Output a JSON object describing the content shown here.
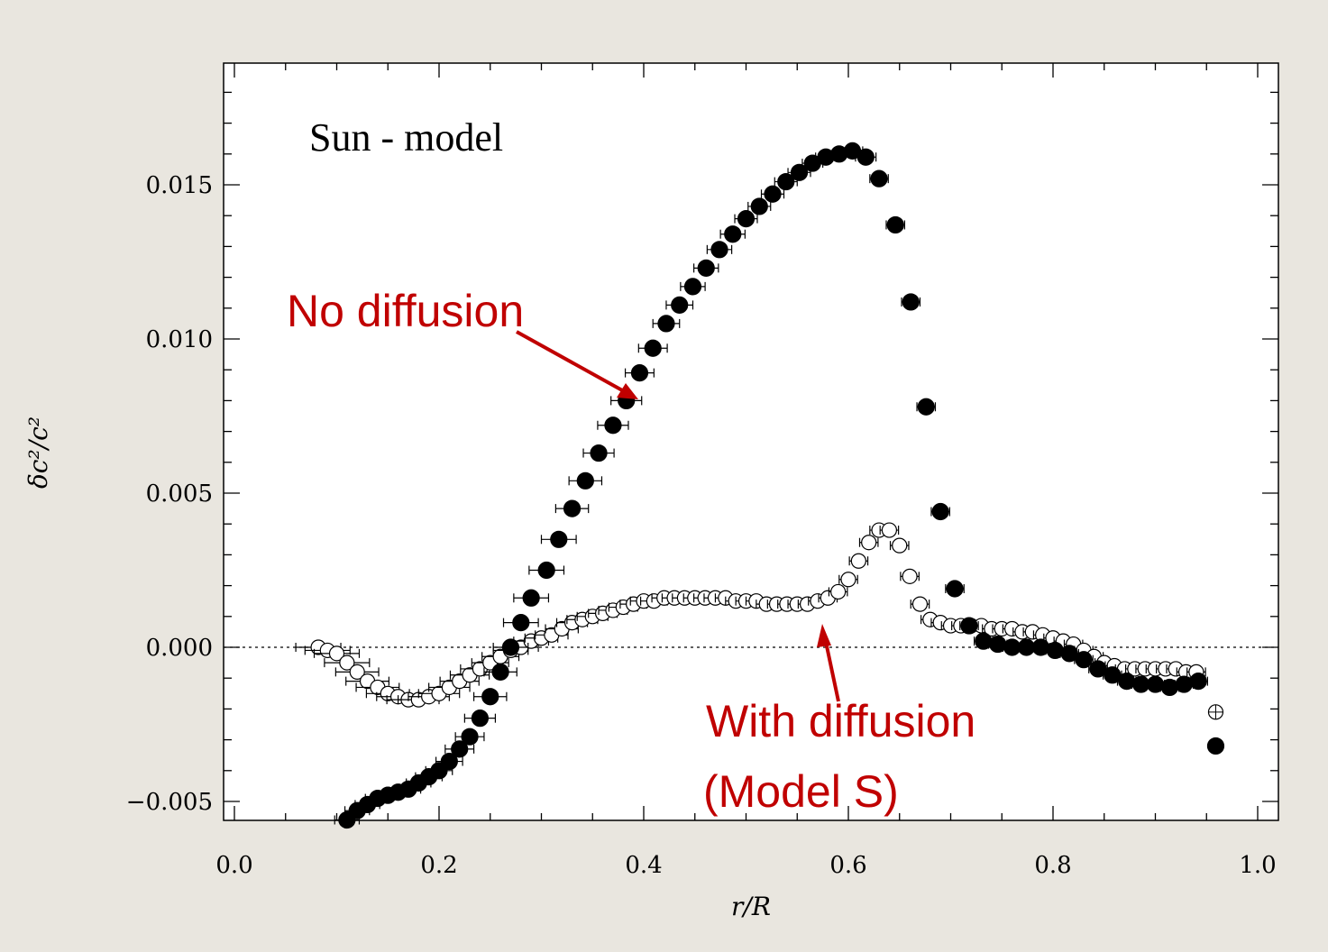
{
  "colors": {
    "annotation": "#c00000",
    "marker": "#000000",
    "page_background": "#e9e6df",
    "plot_background": "#ffffff"
  },
  "chart_data": {
    "type": "scatter",
    "title": "Sun - model",
    "xlabel": "r/R",
    "ylabel": "δc²/c²",
    "xlim": [
      0.0,
      1.0
    ],
    "ylim": [
      -0.0055,
      0.0185
    ],
    "x_ticks": [
      "0.0",
      "0.2",
      "0.4",
      "0.6",
      "0.8",
      "1.0"
    ],
    "y_ticks": [
      "−0.005",
      "0.000",
      "0.005",
      "0.010",
      "0.015"
    ],
    "y_tick_values": [
      -0.005,
      0.0,
      0.005,
      0.01,
      0.015
    ],
    "x_tick_values": [
      0.0,
      0.2,
      0.4,
      0.6,
      0.8,
      1.0
    ],
    "reference_line": {
      "y": 0.0,
      "style": "dotted"
    },
    "grid": false,
    "error_bars": "horizontal",
    "annotations": [
      {
        "text": "No diffusion",
        "target_x": 0.385,
        "target_y": 0.008
      },
      {
        "text": "With diffusion",
        "text_line2": "(Model S)",
        "target_x": 0.567,
        "target_y": 0.0014
      }
    ],
    "series": [
      {
        "marker": "filled-circle",
        "points": [
          [
            0.11,
            -0.0056,
            0.012
          ],
          [
            0.12,
            -0.0053,
            0.012
          ],
          [
            0.13,
            -0.0051,
            0.012
          ],
          [
            0.14,
            -0.0049,
            0.012
          ],
          [
            0.15,
            -0.0048,
            0.012
          ],
          [
            0.16,
            -0.0047,
            0.012
          ],
          [
            0.17,
            -0.0046,
            0.012
          ],
          [
            0.18,
            -0.0044,
            0.012
          ],
          [
            0.19,
            -0.0042,
            0.013
          ],
          [
            0.2,
            -0.004,
            0.013
          ],
          [
            0.21,
            -0.0037,
            0.013
          ],
          [
            0.22,
            -0.0033,
            0.014
          ],
          [
            0.23,
            -0.0029,
            0.014
          ],
          [
            0.24,
            -0.0023,
            0.015
          ],
          [
            0.25,
            -0.0016,
            0.016
          ],
          [
            0.26,
            -0.0008,
            0.016
          ],
          [
            0.27,
            0.0,
            0.017
          ],
          [
            0.28,
            0.0008,
            0.017
          ],
          [
            0.29,
            0.0016,
            0.017
          ],
          [
            0.305,
            0.0025,
            0.017
          ],
          [
            0.317,
            0.0035,
            0.017
          ],
          [
            0.33,
            0.0045,
            0.016
          ],
          [
            0.343,
            0.0054,
            0.016
          ],
          [
            0.356,
            0.0063,
            0.015
          ],
          [
            0.37,
            0.0072,
            0.015
          ],
          [
            0.383,
            0.008,
            0.015
          ],
          [
            0.396,
            0.0089,
            0.014
          ],
          [
            0.409,
            0.0097,
            0.014
          ],
          [
            0.422,
            0.0105,
            0.013
          ],
          [
            0.435,
            0.0111,
            0.013
          ],
          [
            0.448,
            0.0117,
            0.012
          ],
          [
            0.461,
            0.0123,
            0.012
          ],
          [
            0.474,
            0.0129,
            0.012
          ],
          [
            0.487,
            0.0134,
            0.012
          ],
          [
            0.5,
            0.0139,
            0.011
          ],
          [
            0.513,
            0.0143,
            0.011
          ],
          [
            0.526,
            0.0147,
            0.011
          ],
          [
            0.539,
            0.0151,
            0.011
          ],
          [
            0.552,
            0.0154,
            0.011
          ],
          [
            0.565,
            0.0157,
            0.01
          ],
          [
            0.578,
            0.0159,
            0.01
          ],
          [
            0.591,
            0.016,
            0.01
          ],
          [
            0.604,
            0.0161,
            0.01
          ],
          [
            0.617,
            0.0159,
            0.01
          ],
          [
            0.63,
            0.0152,
            0.009
          ],
          [
            0.646,
            0.0137,
            0.009
          ],
          [
            0.661,
            0.0112,
            0.009
          ],
          [
            0.676,
            0.0078,
            0.009
          ],
          [
            0.69,
            0.0044,
            0.009
          ],
          [
            0.704,
            0.0019,
            0.009
          ],
          [
            0.718,
            0.0007,
            0.009
          ],
          [
            0.732,
            0.0002,
            0.009
          ],
          [
            0.746,
            0.0001,
            0.009
          ],
          [
            0.76,
            0.0,
            0.009
          ],
          [
            0.774,
            0.0,
            0.009
          ],
          [
            0.788,
            0.0,
            0.009
          ],
          [
            0.802,
            -0.0001,
            0.009
          ],
          [
            0.816,
            -0.0002,
            0.009
          ],
          [
            0.83,
            -0.0004,
            0.009
          ],
          [
            0.844,
            -0.0007,
            0.009
          ],
          [
            0.858,
            -0.0009,
            0.009
          ],
          [
            0.872,
            -0.0011,
            0.009
          ],
          [
            0.886,
            -0.0012,
            0.009
          ],
          [
            0.9,
            -0.0012,
            0.009
          ],
          [
            0.914,
            -0.0013,
            0.009
          ],
          [
            0.928,
            -0.0012,
            0.009
          ],
          [
            0.942,
            -0.0011,
            0.009
          ],
          [
            0.959,
            -0.0032,
            0.0
          ]
        ]
      },
      {
        "marker": "open-circle",
        "points": [
          [
            0.082,
            0.0,
            0.022
          ],
          [
            0.091,
            -0.0001,
            0.022
          ],
          [
            0.1,
            -0.0002,
            0.022
          ],
          [
            0.11,
            -0.0005,
            0.022
          ],
          [
            0.12,
            -0.0008,
            0.021
          ],
          [
            0.13,
            -0.0011,
            0.021
          ],
          [
            0.14,
            -0.0013,
            0.021
          ],
          [
            0.15,
            -0.0015,
            0.021
          ],
          [
            0.16,
            -0.0016,
            0.021
          ],
          [
            0.17,
            -0.0017,
            0.021
          ],
          [
            0.18,
            -0.0017,
            0.02
          ],
          [
            0.19,
            -0.0016,
            0.02
          ],
          [
            0.2,
            -0.0015,
            0.02
          ],
          [
            0.21,
            -0.0013,
            0.02
          ],
          [
            0.22,
            -0.0011,
            0.019
          ],
          [
            0.23,
            -0.0009,
            0.019
          ],
          [
            0.24,
            -0.0007,
            0.019
          ],
          [
            0.25,
            -0.0005,
            0.018
          ],
          [
            0.26,
            -0.0003,
            0.018
          ],
          [
            0.27,
            -0.0001,
            0.017
          ],
          [
            0.28,
            0.0,
            0.017
          ],
          [
            0.29,
            0.0002,
            0.017
          ],
          [
            0.3,
            0.0003,
            0.016
          ],
          [
            0.31,
            0.0004,
            0.016
          ],
          [
            0.32,
            0.0006,
            0.016
          ],
          [
            0.33,
            0.0008,
            0.015
          ],
          [
            0.34,
            0.0009,
            0.015
          ],
          [
            0.35,
            0.001,
            0.015
          ],
          [
            0.36,
            0.0011,
            0.014
          ],
          [
            0.37,
            0.0012,
            0.014
          ],
          [
            0.38,
            0.0013,
            0.014
          ],
          [
            0.39,
            0.0014,
            0.013
          ],
          [
            0.4,
            0.0015,
            0.013
          ],
          [
            0.41,
            0.0015,
            0.013
          ],
          [
            0.42,
            0.0016,
            0.012
          ],
          [
            0.43,
            0.0016,
            0.012
          ],
          [
            0.44,
            0.0016,
            0.012
          ],
          [
            0.45,
            0.0016,
            0.011
          ],
          [
            0.46,
            0.0016,
            0.011
          ],
          [
            0.47,
            0.0016,
            0.011
          ],
          [
            0.48,
            0.0016,
            0.01
          ],
          [
            0.49,
            0.0015,
            0.01
          ],
          [
            0.5,
            0.0015,
            0.01
          ],
          [
            0.51,
            0.0015,
            0.01
          ],
          [
            0.52,
            0.0014,
            0.01
          ],
          [
            0.53,
            0.0014,
            0.009
          ],
          [
            0.54,
            0.0014,
            0.009
          ],
          [
            0.55,
            0.0014,
            0.009
          ],
          [
            0.56,
            0.0014,
            0.009
          ],
          [
            0.57,
            0.0015,
            0.009
          ],
          [
            0.58,
            0.0016,
            0.009
          ],
          [
            0.59,
            0.0018,
            0.009
          ],
          [
            0.6,
            0.0022,
            0.009
          ],
          [
            0.61,
            0.0028,
            0.009
          ],
          [
            0.62,
            0.0034,
            0.009
          ],
          [
            0.63,
            0.0038,
            0.009
          ],
          [
            0.64,
            0.0038,
            0.009
          ],
          [
            0.65,
            0.0033,
            0.009
          ],
          [
            0.66,
            0.0023,
            0.009
          ],
          [
            0.67,
            0.0014,
            0.009
          ],
          [
            0.68,
            0.0009,
            0.009
          ],
          [
            0.69,
            0.0008,
            0.009
          ],
          [
            0.7,
            0.0007,
            0.009
          ],
          [
            0.71,
            0.0007,
            0.009
          ],
          [
            0.72,
            0.0007,
            0.009
          ],
          [
            0.73,
            0.0007,
            0.009
          ],
          [
            0.74,
            0.0006,
            0.009
          ],
          [
            0.75,
            0.0006,
            0.009
          ],
          [
            0.76,
            0.0006,
            0.009
          ],
          [
            0.77,
            0.0005,
            0.009
          ],
          [
            0.78,
            0.0005,
            0.009
          ],
          [
            0.79,
            0.0004,
            0.009
          ],
          [
            0.8,
            0.0003,
            0.009
          ],
          [
            0.81,
            0.0002,
            0.009
          ],
          [
            0.82,
            0.0001,
            0.009
          ],
          [
            0.83,
            -0.0001,
            0.009
          ],
          [
            0.84,
            -0.0003,
            0.009
          ],
          [
            0.85,
            -0.0005,
            0.009
          ],
          [
            0.86,
            -0.0006,
            0.009
          ],
          [
            0.87,
            -0.0007,
            0.009
          ],
          [
            0.88,
            -0.0007,
            0.009
          ],
          [
            0.89,
            -0.0007,
            0.009
          ],
          [
            0.9,
            -0.0007,
            0.009
          ],
          [
            0.91,
            -0.0007,
            0.009
          ],
          [
            0.92,
            -0.0007,
            0.009
          ],
          [
            0.93,
            -0.0008,
            0.009
          ],
          [
            0.94,
            -0.0008,
            0.009
          ],
          [
            0.959,
            -0.0021,
            0.0
          ]
        ]
      }
    ]
  }
}
